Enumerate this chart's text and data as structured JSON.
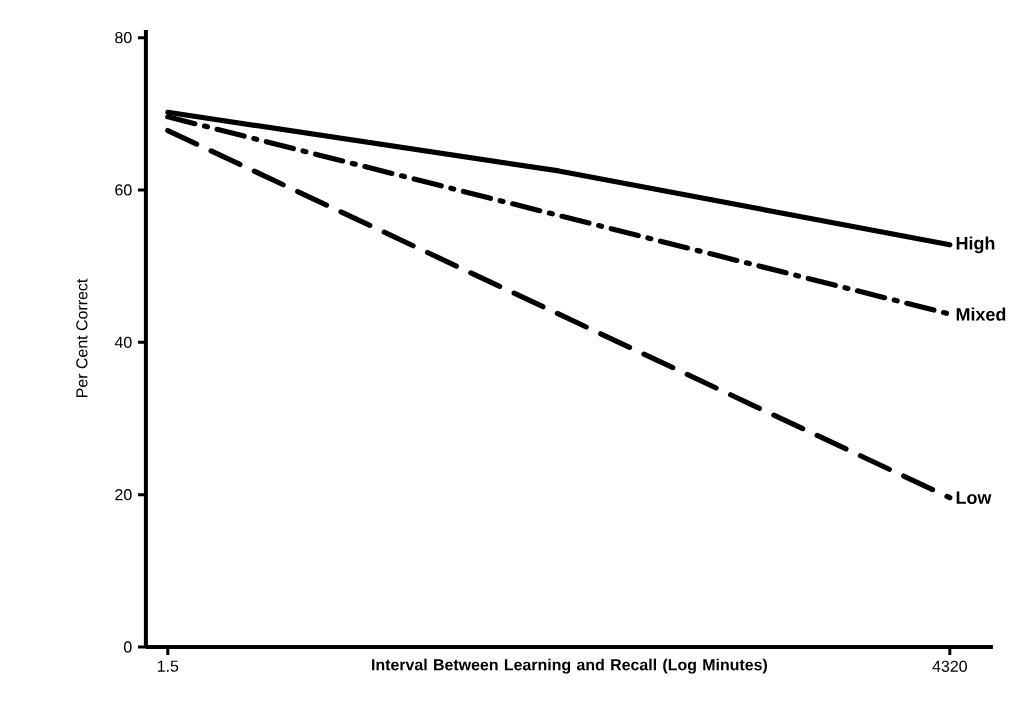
{
  "chart_data": {
    "type": "line",
    "xlabel": "Interval Between Learning and Recall (Log Minutes)",
    "ylabel": "Per Cent Correct",
    "log": "x",
    "xlim": [
      1.2,
      6700
    ],
    "ylim": [
      0,
      81
    ],
    "xticks": [
      1.5,
      4320
    ],
    "yticks": [
      0,
      20,
      40,
      60,
      80
    ],
    "grid": false,
    "legend": false,
    "marker": "none",
    "series": [
      {
        "name": "High",
        "color": "#000000",
        "line_style": "solid",
        "x": [
          1.5,
          80.5,
          4320
        ],
        "values": [
          70.2,
          62.5,
          52.8
        ]
      },
      {
        "name": "Mixed",
        "color": "#000000",
        "line_style": "dashdot",
        "x": [
          1.5,
          4320
        ],
        "values": [
          69.6,
          43.7
        ]
      },
      {
        "name": "Low",
        "color": "#000000",
        "line_style": "dashed",
        "x": [
          1.5,
          4320
        ],
        "values": [
          67.8,
          19.6
        ]
      }
    ]
  }
}
